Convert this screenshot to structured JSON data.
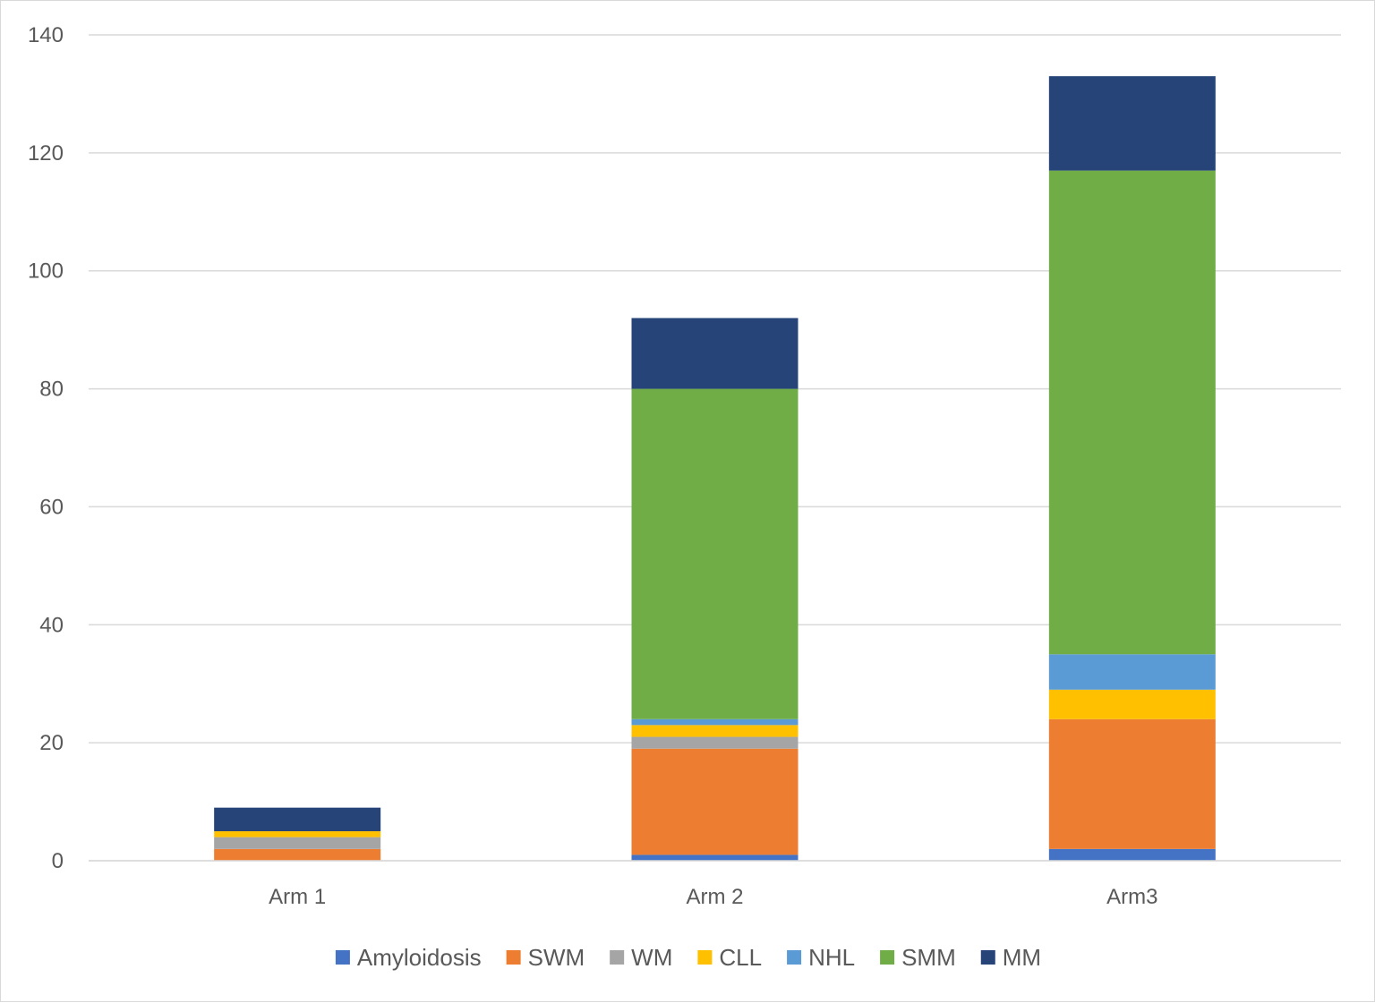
{
  "chart_data": {
    "type": "bar",
    "stacked": true,
    "title": "",
    "xlabel": "",
    "ylabel": "",
    "categories": [
      "Arm 1",
      "Arm 2",
      "Arm3"
    ],
    "ylim": [
      0,
      140
    ],
    "yticks": [
      0,
      20,
      40,
      60,
      80,
      100,
      120,
      140
    ],
    "grid": true,
    "legend_position": "bottom",
    "series": [
      {
        "name": "Amyloidosis",
        "color": "#4472C4",
        "values": [
          0,
          1,
          2
        ]
      },
      {
        "name": "SWM",
        "color": "#ED7D31",
        "values": [
          2,
          18,
          22
        ]
      },
      {
        "name": "WM",
        "color": "#A5A5A5",
        "values": [
          2,
          2,
          0
        ]
      },
      {
        "name": "CLL",
        "color": "#FFC000",
        "values": [
          1,
          2,
          5
        ]
      },
      {
        "name": "NHL",
        "color": "#5B9BD5",
        "values": [
          0,
          1,
          6
        ]
      },
      {
        "name": "SMM",
        "color": "#70AD47",
        "values": [
          0,
          56,
          82
        ]
      },
      {
        "name": "MM",
        "color": "#264478",
        "values": [
          4,
          12,
          16
        ]
      }
    ]
  }
}
